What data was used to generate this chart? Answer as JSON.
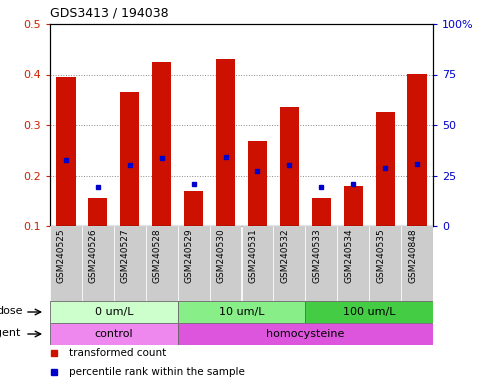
{
  "title": "GDS3413 / 194038",
  "samples": [
    "GSM240525",
    "GSM240526",
    "GSM240527",
    "GSM240528",
    "GSM240529",
    "GSM240530",
    "GSM240531",
    "GSM240532",
    "GSM240533",
    "GSM240534",
    "GSM240535",
    "GSM240848"
  ],
  "transformed_count": [
    0.395,
    0.155,
    0.365,
    0.425,
    0.17,
    0.43,
    0.268,
    0.335,
    0.155,
    0.18,
    0.325,
    0.4
  ],
  "percentile_rank": [
    0.23,
    0.177,
    0.22,
    0.235,
    0.183,
    0.237,
    0.208,
    0.22,
    0.177,
    0.183,
    0.215,
    0.222
  ],
  "ylim": [
    0.1,
    0.5
  ],
  "yticks": [
    0.1,
    0.2,
    0.3,
    0.4,
    0.5
  ],
  "right_yticks": [
    0,
    25,
    50,
    75,
    100
  ],
  "right_ylabels": [
    "0",
    "25",
    "50",
    "75",
    "100%"
  ],
  "bar_color": "#cc1100",
  "percentile_color": "#0000cc",
  "dose_groups": [
    {
      "label": "0 um/L",
      "start": 0,
      "end": 4,
      "color": "#ccffcc"
    },
    {
      "label": "10 um/L",
      "start": 4,
      "end": 8,
      "color": "#88ee88"
    },
    {
      "label": "100 um/L",
      "start": 8,
      "end": 12,
      "color": "#44cc44"
    }
  ],
  "agent_groups": [
    {
      "label": "control",
      "start": 0,
      "end": 4,
      "color": "#ee88ee"
    },
    {
      "label": "homocysteine",
      "start": 4,
      "end": 12,
      "color": "#dd55dd"
    }
  ],
  "dose_label": "dose",
  "agent_label": "agent",
  "legend_items": [
    {
      "label": "transformed count",
      "color": "#cc1100"
    },
    {
      "label": "percentile rank within the sample",
      "color": "#0000cc"
    }
  ],
  "bg_color": "#ffffff",
  "plot_bg": "#ffffff",
  "tick_label_color_left": "#cc2200",
  "tick_label_color_right": "#0000cc",
  "bar_width": 0.6,
  "sample_bg": "#cccccc"
}
